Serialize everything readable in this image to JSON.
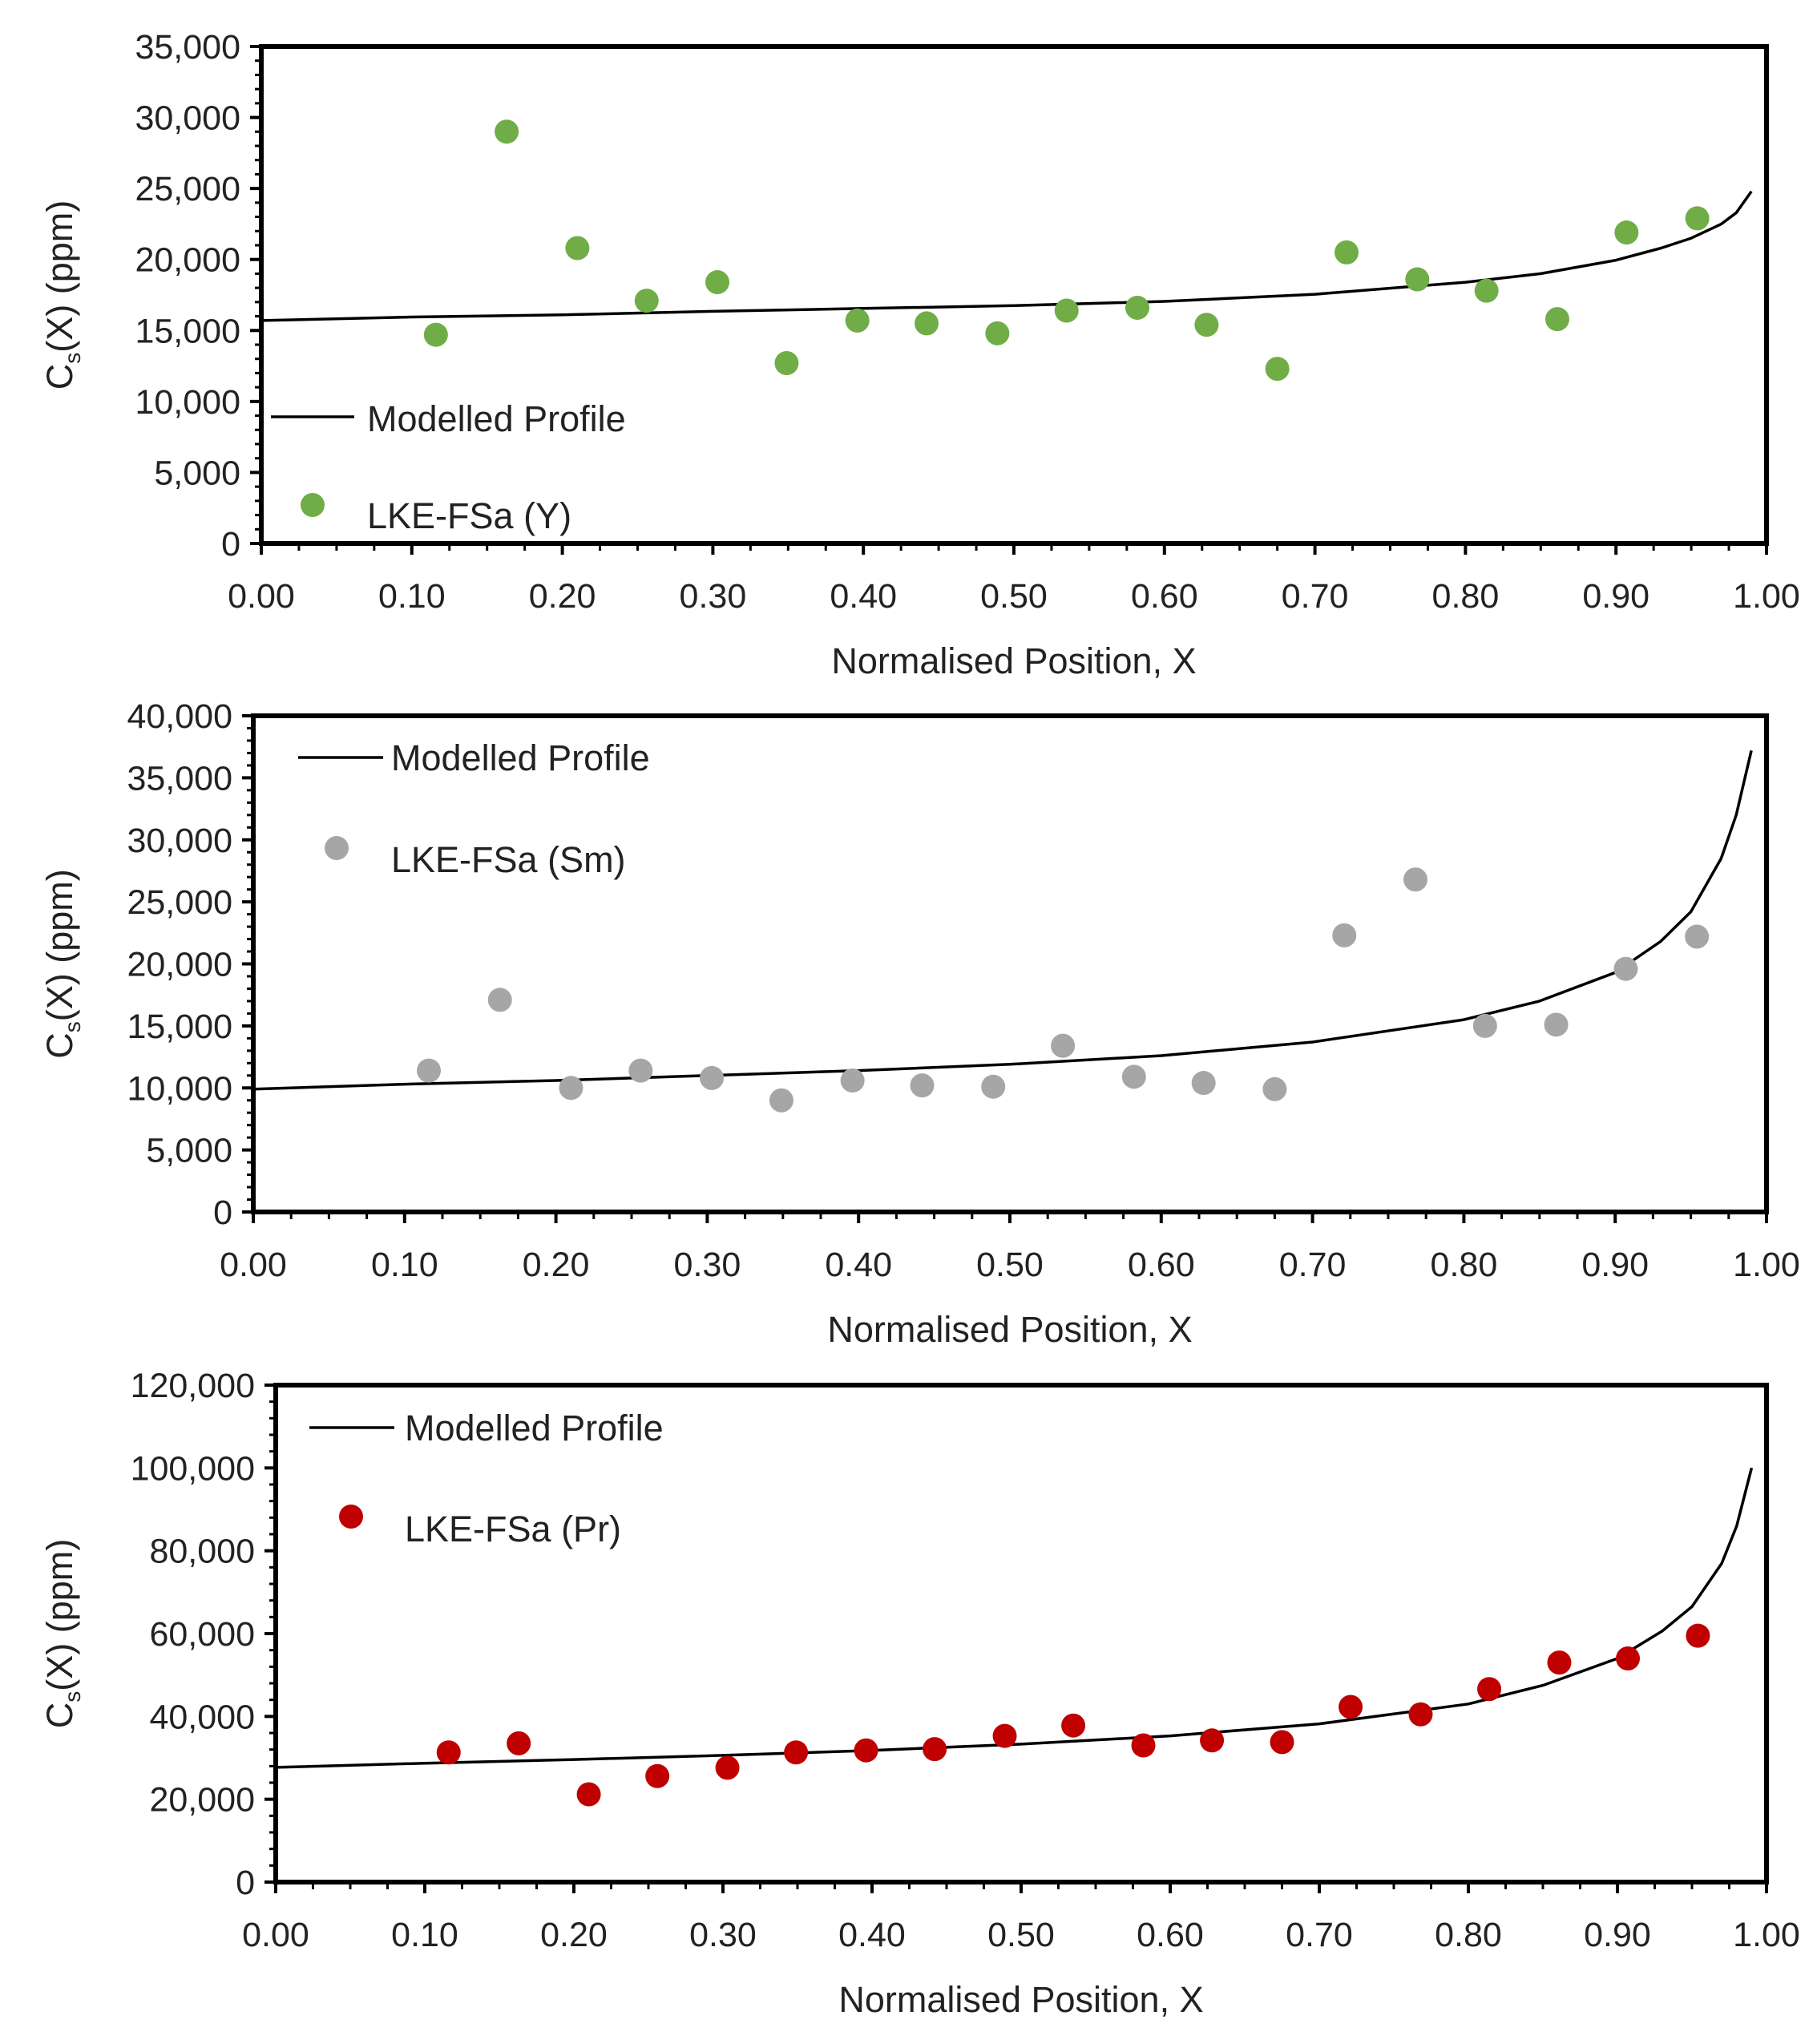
{
  "chart_data": [
    {
      "type": "scatter",
      "xlabel": "Normalised Position, X",
      "ylabel": {
        "main": "C",
        "sub": "s",
        "rest": "(X) (ppm)"
      },
      "xlim": [
        0,
        1
      ],
      "ylim": [
        0,
        35000
      ],
      "xticks": [
        "0.00",
        "0.10",
        "0.20",
        "0.30",
        "0.40",
        "0.50",
        "0.60",
        "0.70",
        "0.80",
        "0.90",
        "1.00"
      ],
      "yticks": [
        "0",
        "5,000",
        "10,000",
        "15,000",
        "20,000",
        "25,000",
        "30,000",
        "35,000"
      ],
      "grid": false,
      "legend_position": "bottom-left",
      "series": [
        {
          "name": "Modelled Profile",
          "kind": "line",
          "color": "#000000",
          "x": [
            0,
            0.1,
            0.2,
            0.3,
            0.4,
            0.5,
            0.6,
            0.7,
            0.8,
            0.85,
            0.9,
            0.93,
            0.95,
            0.97,
            0.98,
            0.99
          ],
          "y": [
            15700,
            15950,
            16100,
            16350,
            16550,
            16750,
            17050,
            17550,
            18400,
            19000,
            19950,
            20800,
            21500,
            22500,
            23300,
            24800
          ]
        },
        {
          "name": "LKE-FSa (Y)",
          "kind": "scatter",
          "color": "#70ad47",
          "x": [
            0.116,
            0.163,
            0.21,
            0.256,
            0.303,
            0.349,
            0.396,
            0.442,
            0.489,
            0.535,
            0.582,
            0.628,
            0.675,
            0.721,
            0.768,
            0.814,
            0.861,
            0.907,
            0.954
          ],
          "y": [
            14700,
            29000,
            20800,
            17100,
            18400,
            12700,
            15700,
            15500,
            14800,
            16400,
            16600,
            15400,
            12300,
            20500,
            18600,
            17800,
            15800,
            21900,
            22900
          ]
        }
      ]
    },
    {
      "type": "scatter",
      "xlabel": "Normalised Position, X",
      "ylabel": {
        "main": "C",
        "sub": "s",
        "rest": "(X) (ppm)"
      },
      "xlim": [
        0,
        1
      ],
      "ylim": [
        0,
        40000
      ],
      "xticks": [
        "0.00",
        "0.10",
        "0.20",
        "0.30",
        "0.40",
        "0.50",
        "0.60",
        "0.70",
        "0.80",
        "0.90",
        "1.00"
      ],
      "yticks": [
        "0",
        "5,000",
        "10,000",
        "15,000",
        "20,000",
        "25,000",
        "30,000",
        "35,000",
        "40,000"
      ],
      "grid": false,
      "legend_position": "top-left",
      "series": [
        {
          "name": "Modelled Profile",
          "kind": "line",
          "color": "#000000",
          "x": [
            0,
            0.1,
            0.2,
            0.3,
            0.4,
            0.5,
            0.6,
            0.7,
            0.8,
            0.85,
            0.9,
            0.93,
            0.95,
            0.97,
            0.98,
            0.99
          ],
          "y": [
            9900,
            10300,
            10600,
            11000,
            11400,
            11900,
            12600,
            13700,
            15500,
            17000,
            19300,
            21800,
            24200,
            28500,
            32000,
            37200
          ]
        },
        {
          "name": "LKE-FSa (Sm)",
          "kind": "scatter",
          "color": "#a6a6a6",
          "x": [
            0.116,
            0.163,
            0.21,
            0.256,
            0.303,
            0.349,
            0.396,
            0.442,
            0.489,
            0.535,
            0.582,
            0.628,
            0.675,
            0.721,
            0.768,
            0.814,
            0.861,
            0.907,
            0.954
          ],
          "y": [
            11400,
            17100,
            10000,
            11400,
            10800,
            9000,
            10600,
            10200,
            10100,
            13400,
            10900,
            10400,
            9900,
            22300,
            26800,
            15000,
            15100,
            19600,
            22200
          ]
        }
      ]
    },
    {
      "type": "scatter",
      "xlabel": "Normalised Position, X",
      "ylabel": {
        "main": "C",
        "sub": "s",
        "rest": "(X) (ppm)"
      },
      "xlim": [
        0,
        1
      ],
      "ylim": [
        0,
        120000
      ],
      "xticks": [
        "0.00",
        "0.10",
        "0.20",
        "0.30",
        "0.40",
        "0.50",
        "0.60",
        "0.70",
        "0.80",
        "0.90",
        "1.00"
      ],
      "yticks": [
        "0",
        "20,000",
        "40,000",
        "60,000",
        "80,000",
        "100,000",
        "120,000"
      ],
      "grid": false,
      "legend_position": "top-left",
      "series": [
        {
          "name": "Modelled Profile",
          "kind": "line",
          "color": "#000000",
          "x": [
            0,
            0.1,
            0.2,
            0.3,
            0.4,
            0.5,
            0.6,
            0.7,
            0.8,
            0.85,
            0.9,
            0.93,
            0.95,
            0.97,
            0.98,
            0.99
          ],
          "y": [
            27700,
            28700,
            29600,
            30600,
            31800,
            33300,
            35300,
            38200,
            43000,
            47500,
            54000,
            60600,
            66500,
            77000,
            86000,
            100000
          ]
        },
        {
          "name": "LKE-FSa (Pr)",
          "kind": "scatter",
          "color": "#c00000",
          "x": [
            0.116,
            0.163,
            0.21,
            0.256,
            0.303,
            0.349,
            0.396,
            0.442,
            0.489,
            0.535,
            0.582,
            0.628,
            0.675,
            0.721,
            0.768,
            0.814,
            0.861,
            0.907,
            0.954
          ],
          "y": [
            31300,
            33500,
            21200,
            25600,
            27600,
            31300,
            31800,
            32100,
            35300,
            37800,
            33000,
            34200,
            33800,
            42300,
            40500,
            46600,
            53000,
            54000,
            59500
          ]
        }
      ]
    }
  ]
}
